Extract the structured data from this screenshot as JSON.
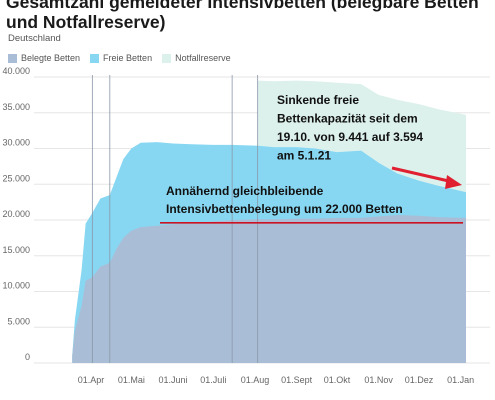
{
  "title_lines": [
    "Gesamtzahl gemeldeter Intensivbetten (belegbare Betten",
    "und Notfallreserve)"
  ],
  "subtitle": "Deutschland",
  "colors": {
    "belegt": "#a9bed6",
    "frei": "#87d7f2",
    "reserve": "#dcf1ec",
    "annotation_line": "#cc1122",
    "arrow": "#e02030"
  },
  "chart_data": {
    "type": "area",
    "stacked": true,
    "title": "Gesamtzahl gemeldeter Intensivbetten (belegbare Betten und Notfallreserve)",
    "region": "Deutschland",
    "x_ticks": [
      "01.Apr",
      "01.Mai",
      "01.Juni",
      "01.Juli",
      "01.Aug",
      "01.Sept",
      "01.Okt",
      "01.Nov",
      "01.Dez",
      "01.Jan"
    ],
    "y_ticks": [
      "0",
      "5.000",
      "10.000",
      "15.000",
      "20.000",
      "25.000",
      "30.000",
      "35.000",
      "40.000"
    ],
    "ylim": [
      0,
      40000
    ],
    "grid": true,
    "legend_position": "top-left",
    "series": [
      {
        "name": "Belegte Betten",
        "stack_level": 1
      },
      {
        "name": "Freie Betten",
        "stack_level": 2
      },
      {
        "name": "Notfallreserve",
        "stack_level": 3
      }
    ],
    "points": [
      {
        "date": "2020-03-18",
        "belegt": 1000,
        "belegt_frei": 1000
      },
      {
        "date": "2020-03-20",
        "belegt": 4500,
        "belegt_frei": 6000
      },
      {
        "date": "2020-03-25",
        "belegt": 8000,
        "belegt_frei": 13000
      },
      {
        "date": "2020-03-28",
        "belegt": 11500,
        "belegt_frei": 19500
      },
      {
        "date": "2020-04-02",
        "belegt": 12000,
        "belegt_frei": 21000
      },
      {
        "date": "2020-04-08",
        "belegt": 13500,
        "belegt_frei": 23000
      },
      {
        "date": "2020-04-15",
        "belegt": 14000,
        "belegt_frei": 23500
      },
      {
        "date": "2020-04-20",
        "belegt": 16000,
        "belegt_frei": 26000
      },
      {
        "date": "2020-04-25",
        "belegt": 17500,
        "belegt_frei": 28500
      },
      {
        "date": "2020-05-01",
        "belegt": 18500,
        "belegt_frei": 30000
      },
      {
        "date": "2020-05-08",
        "belegt": 19000,
        "belegt_frei": 30800
      },
      {
        "date": "2020-05-20",
        "belegt": 19200,
        "belegt_frei": 30900
      },
      {
        "date": "2020-06-01",
        "belegt": 19400,
        "belegt_frei": 30700
      },
      {
        "date": "2020-06-15",
        "belegt": 19600,
        "belegt_frei": 30600
      },
      {
        "date": "2020-07-01",
        "belegt": 19800,
        "belegt_frei": 30500
      },
      {
        "date": "2020-07-15",
        "belegt": 20000,
        "belegt_frei": 30500
      },
      {
        "date": "2020-08-01",
        "belegt": 20100,
        "belegt_frei": 30400
      },
      {
        "date": "2020-08-03",
        "belegt": 20100,
        "belegt_frei": 30400,
        "gesamt": 39500
      },
      {
        "date": "2020-08-15",
        "belegt": 20100,
        "belegt_frei": 30200,
        "gesamt": 39400
      },
      {
        "date": "2020-09-01",
        "belegt": 20200,
        "belegt_frei": 30200,
        "gesamt": 39500
      },
      {
        "date": "2020-09-15",
        "belegt": 20200,
        "belegt_frei": 30000,
        "gesamt": 39400
      },
      {
        "date": "2020-10-01",
        "belegt": 20300,
        "belegt_frei": 29500,
        "gesamt": 39200
      },
      {
        "date": "2020-10-19",
        "belegt": 20300,
        "belegt_frei": 29700,
        "gesamt": 39000
      },
      {
        "date": "2020-11-01",
        "belegt": 20500,
        "belegt_frei": 28000,
        "gesamt": 37500
      },
      {
        "date": "2020-11-15",
        "belegt": 20700,
        "belegt_frei": 26500,
        "gesamt": 36800
      },
      {
        "date": "2020-12-01",
        "belegt": 20600,
        "belegt_frei": 25500,
        "gesamt": 36200
      },
      {
        "date": "2020-12-15",
        "belegt": 20400,
        "belegt_frei": 24800,
        "gesamt": 35500
      },
      {
        "date": "2021-01-05",
        "belegt": 20300,
        "belegt_frei": 23900,
        "gesamt": 34700
      }
    ],
    "markers": [
      "2020-04-02",
      "2020-04-15",
      "2020-07-15",
      "2020-08-03"
    ],
    "reference_line_value": 19600,
    "annotations": [
      {
        "lines": [
          "Sinkende freie",
          "Bettenkapazität seit dem",
          "19.10. von 9.441 auf 3.594",
          "am 5.1.21"
        ]
      },
      {
        "lines": [
          "Annähernd gleichbleibende",
          "Intensivbettenbelegung um 22.000 Betten"
        ]
      }
    ]
  }
}
